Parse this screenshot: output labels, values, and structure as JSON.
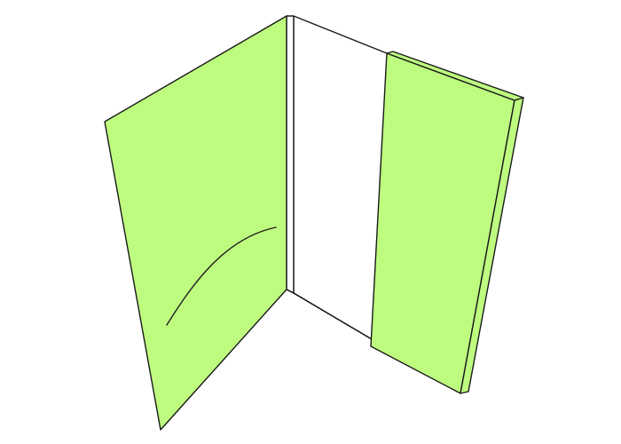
{
  "diagram": {
    "subject": "open-folder-with-pocket-and-insert",
    "colors": {
      "background": "#ffffff",
      "cover_fill": "#bdfc7f",
      "insert_fill": "#bdfc7f",
      "spine_fill": "#ffffff",
      "outline": "#1a1a1a"
    },
    "parts": [
      "left-cover-panel",
      "pocket-curve",
      "spine",
      "back-panel",
      "insert-sheet"
    ]
  }
}
